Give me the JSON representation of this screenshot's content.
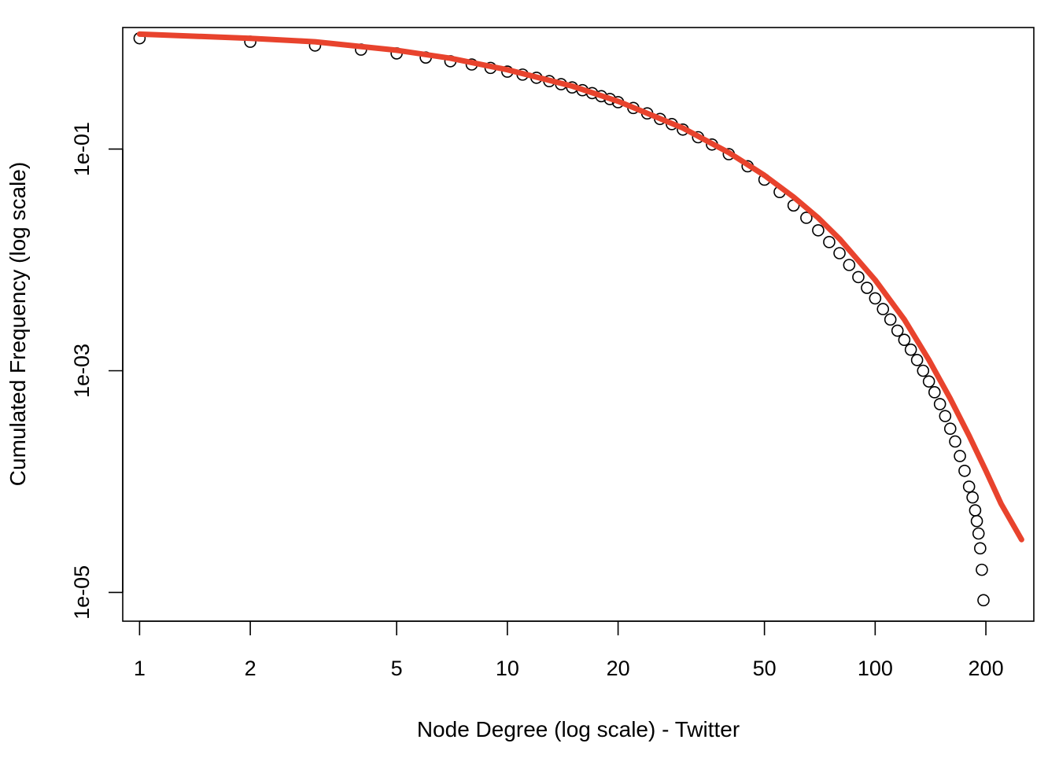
{
  "chart_data": {
    "type": "scatter",
    "title": "",
    "xlabel": "Node Degree (log scale) - Twitter",
    "ylabel": "Cumulated Frequency (log scale)",
    "x_scale": "log",
    "y_scale": "log",
    "xlim": [
      0.9,
      270
    ],
    "ylim": [
      5.5e-06,
      1.25
    ],
    "x_ticks": [
      1,
      2,
      5,
      10,
      20,
      50,
      100,
      200
    ],
    "x_tick_labels": [
      "1",
      "2",
      "5",
      "10",
      "20",
      "50",
      "100",
      "200"
    ],
    "y_ticks": [
      1e-05,
      0.001,
      0.1
    ],
    "y_tick_labels": [
      "1e-05",
      "1e-03",
      "1e-01"
    ],
    "grid": false,
    "legend": "none",
    "series": [
      {
        "kind": "points",
        "marker": "open-circle",
        "color": "#000000",
        "points": [
          [
            1,
            1.0
          ],
          [
            2,
            0.93
          ],
          [
            3,
            0.86
          ],
          [
            4,
            0.79
          ],
          [
            5,
            0.73
          ],
          [
            6,
            0.67
          ],
          [
            7,
            0.62
          ],
          [
            8,
            0.58
          ],
          [
            9,
            0.54
          ],
          [
            10,
            0.5
          ],
          [
            11,
            0.47
          ],
          [
            12,
            0.44
          ],
          [
            13,
            0.41
          ],
          [
            14,
            0.385
          ],
          [
            15,
            0.36
          ],
          [
            16,
            0.34
          ],
          [
            17,
            0.32
          ],
          [
            18,
            0.3
          ],
          [
            19,
            0.283
          ],
          [
            20,
            0.265
          ],
          [
            22,
            0.235
          ],
          [
            24,
            0.21
          ],
          [
            26,
            0.187
          ],
          [
            28,
            0.168
          ],
          [
            30,
            0.15
          ],
          [
            33,
            0.128
          ],
          [
            36,
            0.11
          ],
          [
            40,
            0.09
          ],
          [
            45,
            0.07
          ],
          [
            50,
            0.053
          ],
          [
            55,
            0.041
          ],
          [
            60,
            0.031
          ],
          [
            65,
            0.024
          ],
          [
            70,
            0.0185
          ],
          [
            75,
            0.0145
          ],
          [
            80,
            0.0115
          ],
          [
            85,
            0.009
          ],
          [
            90,
            0.007
          ],
          [
            95,
            0.0056
          ],
          [
            100,
            0.0045
          ],
          [
            105,
            0.0036
          ],
          [
            110,
            0.0029
          ],
          [
            115,
            0.0023
          ],
          [
            120,
            0.0019
          ],
          [
            125,
            0.00155
          ],
          [
            130,
            0.00125
          ],
          [
            135,
            0.001
          ],
          [
            140,
            0.0008
          ],
          [
            145,
            0.00064
          ],
          [
            150,
            0.0005
          ],
          [
            155,
            0.00039
          ],
          [
            160,
            0.0003
          ],
          [
            165,
            0.00023
          ],
          [
            170,
            0.00017
          ],
          [
            175,
            0.000125
          ],
          [
            180,
            9e-05
          ],
          [
            184,
            7.2e-05
          ],
          [
            187,
            5.5e-05
          ],
          [
            189,
            4.4e-05
          ],
          [
            191,
            3.4e-05
          ],
          [
            193,
            2.5e-05
          ],
          [
            195,
            1.6e-05
          ],
          [
            197,
            8.5e-06
          ]
        ]
      },
      {
        "kind": "line",
        "color": "#e8432d",
        "points": [
          [
            1,
            1.09
          ],
          [
            2,
            1.0
          ],
          [
            3,
            0.93
          ],
          [
            5,
            0.78
          ],
          [
            7,
            0.66
          ],
          [
            10,
            0.52
          ],
          [
            15,
            0.37
          ],
          [
            20,
            0.27
          ],
          [
            30,
            0.155
          ],
          [
            40,
            0.093
          ],
          [
            50,
            0.058
          ],
          [
            60,
            0.037
          ],
          [
            70,
            0.024
          ],
          [
            80,
            0.0155
          ],
          [
            100,
            0.0066
          ],
          [
            120,
            0.0029
          ],
          [
            140,
            0.00125
          ],
          [
            160,
            0.00056
          ],
          [
            180,
            0.00026
          ],
          [
            200,
            0.000125
          ],
          [
            220,
            6.3e-05
          ],
          [
            250,
            3e-05
          ]
        ]
      }
    ]
  }
}
